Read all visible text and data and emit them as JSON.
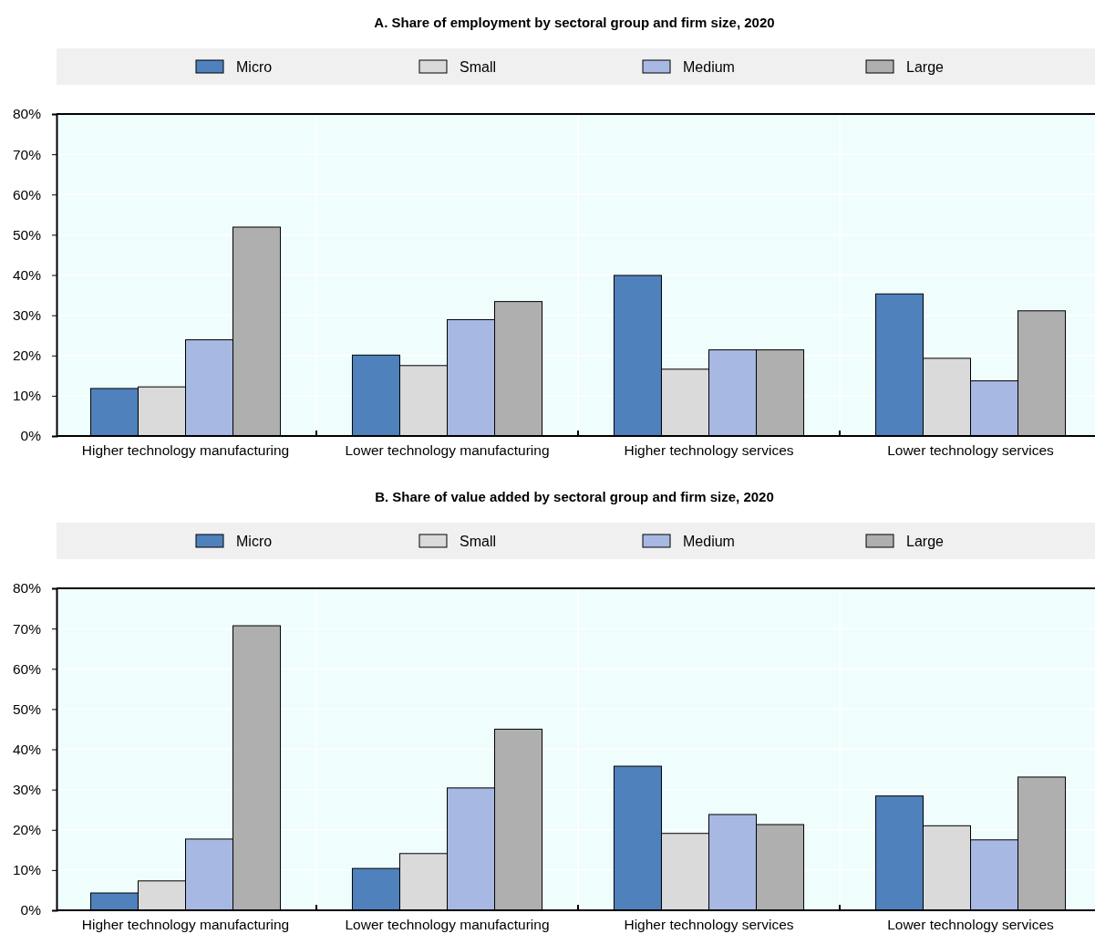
{
  "chart_data": [
    {
      "type": "bar",
      "title": "A. Share of employment by sectoral group and firm size, 2020",
      "categories": [
        "Higher technology manufacturing",
        "Lower technology manufacturing",
        "Higher technology services",
        "Lower technology services"
      ],
      "series": [
        {
          "name": "Micro",
          "color": "#4f81bd",
          "values": [
            11.8,
            20.1,
            39.9,
            35.3
          ]
        },
        {
          "name": "Small",
          "color": "#dadada",
          "values": [
            12.2,
            17.5,
            16.6,
            19.3
          ]
        },
        {
          "name": "Medium",
          "color": "#a7b8e2",
          "values": [
            23.9,
            28.9,
            21.4,
            13.7
          ]
        },
        {
          "name": "Large",
          "color": "#afafaf",
          "values": [
            51.9,
            33.4,
            21.4,
            31.1
          ]
        }
      ],
      "ylim": [
        0,
        80
      ],
      "yticks": [
        {
          "value": 0,
          "label": "0%"
        },
        {
          "value": 10,
          "label": "10%"
        },
        {
          "value": 20,
          "label": "20%"
        },
        {
          "value": 30,
          "label": "30%"
        },
        {
          "value": 40,
          "label": "40%"
        },
        {
          "value": 50,
          "label": "50%"
        },
        {
          "value": 60,
          "label": "60%"
        },
        {
          "value": 70,
          "label": "70%"
        },
        {
          "value": 80,
          "label": "80%"
        }
      ],
      "grid": true,
      "legend": "top"
    },
    {
      "type": "bar",
      "title": "B. Share of value added by sectoral group and firm size, 2020",
      "categories": [
        "Higher technology manufacturing",
        "Lower technology manufacturing",
        "Higher technology services",
        "Lower technology services"
      ],
      "series": [
        {
          "name": "Micro",
          "color": "#4f81bd",
          "values": [
            4.3,
            10.4,
            35.8,
            28.4
          ]
        },
        {
          "name": "Small",
          "color": "#dadada",
          "values": [
            7.3,
            14.1,
            19.1,
            21.0
          ]
        },
        {
          "name": "Medium",
          "color": "#a7b8e2",
          "values": [
            17.7,
            30.4,
            23.8,
            17.5
          ]
        },
        {
          "name": "Large",
          "color": "#afafaf",
          "values": [
            70.7,
            45.0,
            21.3,
            33.1
          ]
        }
      ],
      "ylim": [
        0,
        80
      ],
      "yticks": [
        {
          "value": 0,
          "label": "0%"
        },
        {
          "value": 10,
          "label": "10%"
        },
        {
          "value": 20,
          "label": "20%"
        },
        {
          "value": 30,
          "label": "30%"
        },
        {
          "value": 40,
          "label": "40%"
        },
        {
          "value": 50,
          "label": "50%"
        },
        {
          "value": 60,
          "label": "60%"
        },
        {
          "value": 70,
          "label": "70%"
        },
        {
          "value": 80,
          "label": "80%"
        }
      ],
      "grid": true,
      "legend": "top"
    }
  ]
}
